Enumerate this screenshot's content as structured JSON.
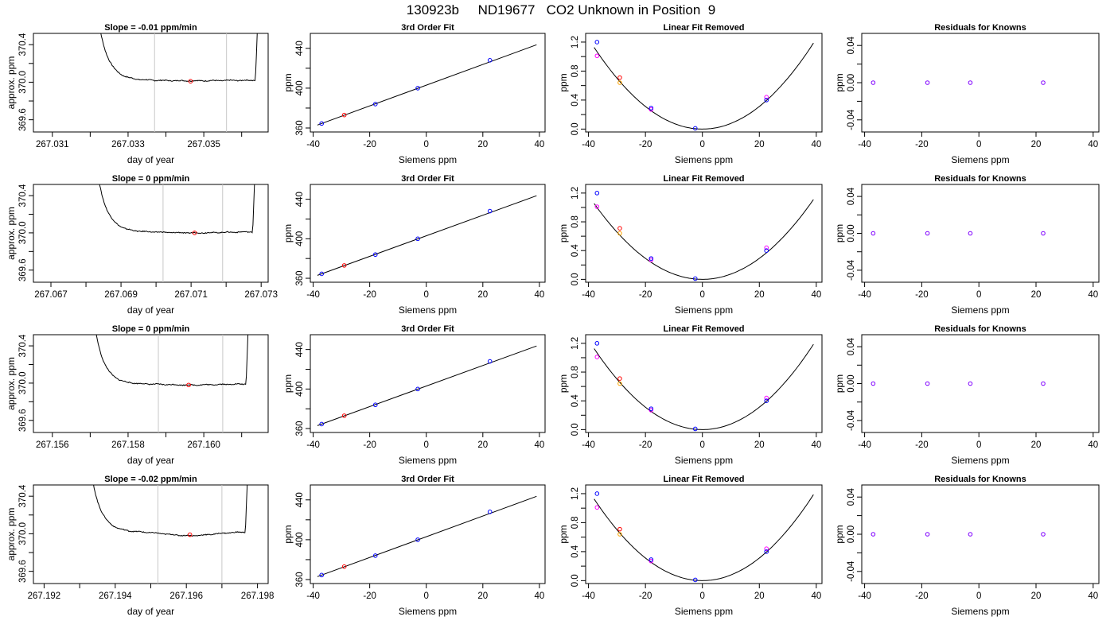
{
  "page_title": "130923b     ND19677   CO2 Unknown in Position  9",
  "colors": {
    "line": "#000000",
    "window_lines": "#c8c8c8",
    "measured_point": "#ff0000",
    "known_blue": "#0000ff",
    "known_magenta": "#ff00ff",
    "known_orange": "#ffa500",
    "residual_point": "#8000ff"
  },
  "chart_data": [
    {
      "type": "line",
      "row": 0,
      "col": 0,
      "title": "Slope =  -0.01  ppm/min",
      "xlabel": "day of year",
      "ylabel": "approx. ppm",
      "xlim": [
        267.0305,
        267.0367
      ],
      "x_ticks": [
        267.031,
        267.032,
        267.033,
        267.034,
        267.035,
        267.036
      ],
      "x_tick_labels": [
        "267.031",
        "",
        "267.033",
        "",
        "267.035",
        ""
      ],
      "ylim": [
        369.47,
        370.52
      ],
      "y_ticks": [
        369.6,
        369.8,
        370.0,
        370.2,
        370.4
      ],
      "y_tick_labels": [
        "369.6",
        "",
        "370.0",
        "",
        "370.4"
      ],
      "trace_start": 267.0321,
      "trace_end": 267.03645,
      "baseline": 370.02,
      "dip_amplitude": -0.005,
      "window": [
        267.0337,
        267.0356
      ],
      "red_point": {
        "x": 267.03465,
        "y": 370.01
      }
    },
    {
      "type": "line",
      "row": 1,
      "col": 0,
      "title": "Slope =  0  ppm/min",
      "xlabel": "day of year",
      "ylabel": "approx. ppm",
      "xlim": [
        267.0665,
        267.0732
      ],
      "x_ticks": [
        267.067,
        267.068,
        267.069,
        267.07,
        267.071,
        267.072,
        267.073
      ],
      "x_tick_labels": [
        "267.067",
        "",
        "267.069",
        "",
        "267.071",
        "",
        "267.073"
      ],
      "ylim": [
        369.47,
        370.52
      ],
      "y_ticks": [
        369.6,
        369.8,
        370.0,
        370.2,
        370.4
      ],
      "y_tick_labels": [
        "369.6",
        "",
        "370.0",
        "",
        "370.4"
      ],
      "trace_start": 267.0682,
      "trace_end": 267.07285,
      "baseline": 370.01,
      "dip_amplitude": -0.01,
      "window": [
        267.0702,
        267.0719
      ],
      "red_point": {
        "x": 267.0711,
        "y": 370.0
      }
    },
    {
      "type": "line",
      "row": 2,
      "col": 0,
      "title": "Slope =  0  ppm/min",
      "xlabel": "day of year",
      "ylabel": "approx. ppm",
      "xlim": [
        267.1555,
        267.1617
      ],
      "x_ticks": [
        267.156,
        267.157,
        267.158,
        267.159,
        267.16,
        267.161
      ],
      "x_tick_labels": [
        "267.156",
        "",
        "267.158",
        "",
        "267.160",
        ""
      ],
      "ylim": [
        369.47,
        370.52
      ],
      "y_ticks": [
        369.6,
        369.8,
        370.0,
        370.2,
        370.4
      ],
      "y_tick_labels": [
        "369.6",
        "",
        "370.0",
        "",
        "370.4"
      ],
      "trace_start": 267.157,
      "trace_end": 267.1612,
      "baseline": 369.99,
      "dip_amplitude": -0.01,
      "window": [
        267.1588,
        267.1605
      ],
      "red_point": {
        "x": 267.1596,
        "y": 369.98
      }
    },
    {
      "type": "line",
      "row": 3,
      "col": 0,
      "title": "Slope =  -0.02  ppm/min",
      "xlabel": "day of year",
      "ylabel": "approx. ppm",
      "xlim": [
        267.1917,
        267.1983
      ],
      "x_ticks": [
        267.192,
        267.193,
        267.194,
        267.195,
        267.196,
        267.197,
        267.198
      ],
      "x_tick_labels": [
        "267.192",
        "",
        "267.194",
        "",
        "267.196",
        "",
        "267.198"
      ],
      "ylim": [
        369.47,
        370.52
      ],
      "y_ticks": [
        369.6,
        369.8,
        370.0,
        370.2,
        370.4
      ],
      "y_tick_labels": [
        "369.6",
        "",
        "370.0",
        "",
        "370.4"
      ],
      "trace_start": 267.1932,
      "trace_end": 267.19775,
      "baseline": 370.02,
      "dip_amplitude": -0.04,
      "window": [
        267.1952,
        267.197
      ],
      "red_point": {
        "x": 267.1961,
        "y": 369.99
      }
    },
    {
      "type": "scatter",
      "role": "fit",
      "row": 0,
      "col": 1,
      "title": "3rd Order Fit",
      "xlabel": "Siemens ppm",
      "ylabel": "ppm",
      "xlim": [
        -41,
        42
      ],
      "ylim": [
        356,
        455
      ],
      "x_ticks": [
        -40,
        -20,
        0,
        20,
        40
      ],
      "x_tick_labels": [
        "-40",
        "-20",
        "0",
        "20",
        "40"
      ],
      "y_ticks": [
        360,
        380,
        400,
        420,
        440
      ],
      "y_tick_labels": [
        "360",
        "",
        "400",
        "",
        "440"
      ],
      "fit_line": {
        "x0": -38.5,
        "x1": 39,
        "intercept": 403,
        "slope": 1.04
      },
      "points_blue": [
        {
          "x": -37,
          "y": 364.5
        },
        {
          "x": -18,
          "y": 384
        },
        {
          "x": -3,
          "y": 400
        },
        {
          "x": 22.5,
          "y": 428
        }
      ],
      "points_red": [
        {
          "x": -29,
          "y": 373
        }
      ]
    },
    {
      "type": "scatter",
      "role": "fit",
      "row": 1,
      "col": 1,
      "title": "3rd Order Fit",
      "xlabel": "Siemens ppm",
      "ylabel": "ppm",
      "xlim": [
        -41,
        42
      ],
      "ylim": [
        356,
        455
      ],
      "x_ticks": [
        -40,
        -20,
        0,
        20,
        40
      ],
      "x_tick_labels": [
        "-40",
        "-20",
        "0",
        "20",
        "40"
      ],
      "y_ticks": [
        360,
        380,
        400,
        420,
        440
      ],
      "y_tick_labels": [
        "360",
        "",
        "400",
        "",
        "440"
      ],
      "fit_line": {
        "x0": -38.5,
        "x1": 39,
        "intercept": 403,
        "slope": 1.04
      },
      "points_blue": [
        {
          "x": -37,
          "y": 364.5
        },
        {
          "x": -18,
          "y": 384
        },
        {
          "x": -3,
          "y": 400
        },
        {
          "x": 22.5,
          "y": 428
        }
      ],
      "points_red": [
        {
          "x": -29,
          "y": 373
        }
      ]
    },
    {
      "type": "scatter",
      "role": "fit",
      "row": 2,
      "col": 1,
      "title": "3rd Order Fit",
      "xlabel": "Siemens ppm",
      "ylabel": "ppm",
      "xlim": [
        -41,
        42
      ],
      "ylim": [
        356,
        455
      ],
      "x_ticks": [
        -40,
        -20,
        0,
        20,
        40
      ],
      "x_tick_labels": [
        "-40",
        "-20",
        "0",
        "20",
        "40"
      ],
      "y_ticks": [
        360,
        380,
        400,
        420,
        440
      ],
      "y_tick_labels": [
        "360",
        "",
        "400",
        "",
        "440"
      ],
      "fit_line": {
        "x0": -38.5,
        "x1": 39,
        "intercept": 403,
        "slope": 1.04
      },
      "points_blue": [
        {
          "x": -37,
          "y": 364.5
        },
        {
          "x": -18,
          "y": 384
        },
        {
          "x": -3,
          "y": 400
        },
        {
          "x": 22.5,
          "y": 428
        }
      ],
      "points_red": [
        {
          "x": -29,
          "y": 373
        }
      ]
    },
    {
      "type": "scatter",
      "role": "fit",
      "row": 3,
      "col": 1,
      "title": "3rd Order Fit",
      "xlabel": "Siemens ppm",
      "ylabel": "ppm",
      "xlim": [
        -41,
        42
      ],
      "ylim": [
        356,
        455
      ],
      "x_ticks": [
        -40,
        -20,
        0,
        20,
        40
      ],
      "x_tick_labels": [
        "-40",
        "-20",
        "0",
        "20",
        "40"
      ],
      "y_ticks": [
        360,
        380,
        400,
        420,
        440
      ],
      "y_tick_labels": [
        "360",
        "",
        "400",
        "",
        "440"
      ],
      "fit_line": {
        "x0": -38.5,
        "x1": 39,
        "intercept": 403,
        "slope": 1.04
      },
      "points_blue": [
        {
          "x": -37,
          "y": 364.5
        },
        {
          "x": -18,
          "y": 384
        },
        {
          "x": -3,
          "y": 400
        },
        {
          "x": 22.5,
          "y": 428
        }
      ],
      "points_red": [
        {
          "x": -29,
          "y": 373
        }
      ]
    },
    {
      "type": "scatter",
      "role": "linear_removed",
      "row": 0,
      "col": 2,
      "title": "Linear Fit Removed",
      "xlabel": "Siemens ppm",
      "ylabel": "ppm",
      "xlim": [
        -41,
        42
      ],
      "ylim": [
        -0.04,
        1.32
      ],
      "x_ticks": [
        -40,
        -20,
        0,
        20,
        40
      ],
      "x_tick_labels": [
        "-40",
        "-20",
        "0",
        "20",
        "40"
      ],
      "y_ticks": [
        0.0,
        0.2,
        0.4,
        0.6,
        0.8,
        1.0,
        1.2
      ],
      "y_tick_labels": [
        "0.0",
        "",
        "0.4",
        "",
        "0.8",
        "",
        "1.2"
      ],
      "curve": {
        "x0": -38,
        "x1": 39,
        "vertex": 0,
        "k": 0.00078
      },
      "points_blue": [
        {
          "x": -37,
          "y": 1.2
        },
        {
          "x": -18,
          "y": 0.29
        },
        {
          "x": -2.5,
          "y": 0.01
        },
        {
          "x": 22.5,
          "y": 0.4
        }
      ],
      "points_magenta": [
        {
          "x": -37,
          "y": 1.01
        },
        {
          "x": -18,
          "y": 0.27
        },
        {
          "x": 22.5,
          "y": 0.44
        }
      ],
      "points_red": [
        {
          "x": -29,
          "y": 0.71
        }
      ],
      "points_orange": [
        {
          "x": -29,
          "y": 0.64
        }
      ]
    },
    {
      "type": "scatter",
      "role": "linear_removed",
      "row": 1,
      "col": 2,
      "title": "Linear Fit Removed",
      "xlabel": "Siemens ppm",
      "ylabel": "ppm",
      "xlim": [
        -41,
        42
      ],
      "ylim": [
        -0.04,
        1.32
      ],
      "x_ticks": [
        -40,
        -20,
        0,
        20,
        40
      ],
      "x_tick_labels": [
        "-40",
        "-20",
        "0",
        "20",
        "40"
      ],
      "y_ticks": [
        0.0,
        0.2,
        0.4,
        0.6,
        0.8,
        1.0,
        1.2
      ],
      "y_tick_labels": [
        "0.0",
        "",
        "0.4",
        "",
        "0.8",
        "",
        "1.2"
      ],
      "curve": {
        "x0": -38,
        "x1": 39,
        "vertex": 0,
        "k": 0.00073
      },
      "points_blue": [
        {
          "x": -37,
          "y": 1.2
        },
        {
          "x": -18,
          "y": 0.29
        },
        {
          "x": -2.5,
          "y": 0.01
        },
        {
          "x": 22.5,
          "y": 0.4
        }
      ],
      "points_magenta": [
        {
          "x": -37,
          "y": 1.01
        },
        {
          "x": -18,
          "y": 0.27
        },
        {
          "x": 22.5,
          "y": 0.44
        }
      ],
      "points_red": [
        {
          "x": -29,
          "y": 0.71
        }
      ],
      "points_orange": [
        {
          "x": -29,
          "y": 0.64
        }
      ]
    },
    {
      "type": "scatter",
      "role": "linear_removed",
      "row": 2,
      "col": 2,
      "title": "Linear Fit Removed",
      "xlabel": "Siemens ppm",
      "ylabel": "ppm",
      "xlim": [
        -41,
        42
      ],
      "ylim": [
        -0.04,
        1.32
      ],
      "x_ticks": [
        -40,
        -20,
        0,
        20,
        40
      ],
      "x_tick_labels": [
        "-40",
        "-20",
        "0",
        "20",
        "40"
      ],
      "y_ticks": [
        0.0,
        0.2,
        0.4,
        0.6,
        0.8,
        1.0,
        1.2
      ],
      "y_tick_labels": [
        "0.0",
        "",
        "0.4",
        "",
        "0.8",
        "",
        "1.2"
      ],
      "curve": {
        "x0": -38,
        "x1": 39,
        "vertex": 0,
        "k": 0.00078
      },
      "points_blue": [
        {
          "x": -37,
          "y": 1.2
        },
        {
          "x": -18,
          "y": 0.29
        },
        {
          "x": -2.5,
          "y": 0.01
        },
        {
          "x": 22.5,
          "y": 0.4
        }
      ],
      "points_magenta": [
        {
          "x": -37,
          "y": 1.01
        },
        {
          "x": -18,
          "y": 0.27
        },
        {
          "x": 22.5,
          "y": 0.44
        }
      ],
      "points_red": [
        {
          "x": -29,
          "y": 0.71
        }
      ],
      "points_orange": [
        {
          "x": -29,
          "y": 0.64
        }
      ]
    },
    {
      "type": "scatter",
      "role": "linear_removed",
      "row": 3,
      "col": 2,
      "title": "Linear Fit Removed",
      "xlabel": "Siemens ppm",
      "ylabel": "ppm",
      "xlim": [
        -41,
        42
      ],
      "ylim": [
        -0.04,
        1.32
      ],
      "x_ticks": [
        -40,
        -20,
        0,
        20,
        40
      ],
      "x_tick_labels": [
        "-40",
        "-20",
        "0",
        "20",
        "40"
      ],
      "y_ticks": [
        0.0,
        0.2,
        0.4,
        0.6,
        0.8,
        1.0,
        1.2
      ],
      "y_tick_labels": [
        "0.0",
        "",
        "0.4",
        "",
        "0.8",
        "",
        "1.2"
      ],
      "curve": {
        "x0": -38,
        "x1": 39,
        "vertex": 0,
        "k": 0.00078
      },
      "points_blue": [
        {
          "x": -37,
          "y": 1.2
        },
        {
          "x": -18,
          "y": 0.29
        },
        {
          "x": -2.5,
          "y": 0.01
        },
        {
          "x": 22.5,
          "y": 0.4
        }
      ],
      "points_magenta": [
        {
          "x": -37,
          "y": 1.01
        },
        {
          "x": -18,
          "y": 0.27
        },
        {
          "x": 22.5,
          "y": 0.44
        }
      ],
      "points_red": [
        {
          "x": -29,
          "y": 0.71
        }
      ],
      "points_orange": [
        {
          "x": -29,
          "y": 0.64
        }
      ]
    },
    {
      "type": "scatter",
      "role": "residuals",
      "row": 0,
      "col": 3,
      "title": "Residuals for Knowns",
      "xlabel": "Siemens ppm",
      "ylabel": "ppm",
      "xlim": [
        -41,
        42
      ],
      "ylim": [
        -0.053,
        0.053
      ],
      "x_ticks": [
        -40,
        -20,
        0,
        20,
        40
      ],
      "x_tick_labels": [
        "-40",
        "-20",
        "0",
        "20",
        "40"
      ],
      "y_ticks": [
        -0.04,
        -0.02,
        0.0,
        0.02,
        0.04
      ],
      "y_tick_labels": [
        "-0.04",
        "",
        "0.00",
        "",
        "0.04"
      ],
      "points_residual": [
        {
          "x": -37,
          "y": 0
        },
        {
          "x": -18,
          "y": 0
        },
        {
          "x": -3,
          "y": 0
        },
        {
          "x": 22.5,
          "y": 0
        }
      ]
    },
    {
      "type": "scatter",
      "role": "residuals",
      "row": 1,
      "col": 3,
      "title": "Residuals for Knowns",
      "xlabel": "Siemens ppm",
      "ylabel": "ppm",
      "xlim": [
        -41,
        42
      ],
      "ylim": [
        -0.053,
        0.053
      ],
      "x_ticks": [
        -40,
        -20,
        0,
        20,
        40
      ],
      "x_tick_labels": [
        "-40",
        "-20",
        "0",
        "20",
        "40"
      ],
      "y_ticks": [
        -0.04,
        -0.02,
        0.0,
        0.02,
        0.04
      ],
      "y_tick_labels": [
        "-0.04",
        "",
        "0.00",
        "",
        "0.04"
      ],
      "points_residual": [
        {
          "x": -37,
          "y": 0
        },
        {
          "x": -18,
          "y": 0
        },
        {
          "x": -3,
          "y": 0
        },
        {
          "x": 22.5,
          "y": 0
        }
      ]
    },
    {
      "type": "scatter",
      "role": "residuals",
      "row": 2,
      "col": 3,
      "title": "Residuals for Knowns",
      "xlabel": "Siemens ppm",
      "ylabel": "ppm",
      "xlim": [
        -41,
        42
      ],
      "ylim": [
        -0.053,
        0.053
      ],
      "x_ticks": [
        -40,
        -20,
        0,
        20,
        40
      ],
      "x_tick_labels": [
        "-40",
        "-20",
        "0",
        "20",
        "40"
      ],
      "y_ticks": [
        -0.04,
        -0.02,
        0.0,
        0.02,
        0.04
      ],
      "y_tick_labels": [
        "-0.04",
        "",
        "0.00",
        "",
        "0.04"
      ],
      "points_residual": [
        {
          "x": -37,
          "y": 0
        },
        {
          "x": -18,
          "y": 0
        },
        {
          "x": -3,
          "y": 0
        },
        {
          "x": 22.5,
          "y": 0
        }
      ]
    },
    {
      "type": "scatter",
      "role": "residuals",
      "row": 3,
      "col": 3,
      "title": "Residuals for Knowns",
      "xlabel": "Siemens ppm",
      "ylabel": "ppm",
      "xlim": [
        -41,
        42
      ],
      "ylim": [
        -0.053,
        0.053
      ],
      "x_ticks": [
        -40,
        -20,
        0,
        20,
        40
      ],
      "x_tick_labels": [
        "-40",
        "-20",
        "0",
        "20",
        "40"
      ],
      "y_ticks": [
        -0.04,
        -0.02,
        0.0,
        0.02,
        0.04
      ],
      "y_tick_labels": [
        "-0.04",
        "",
        "0.00",
        "",
        "0.04"
      ],
      "points_residual": [
        {
          "x": -37,
          "y": 0
        },
        {
          "x": -18,
          "y": 0
        },
        {
          "x": -3,
          "y": 0
        },
        {
          "x": 22.5,
          "y": 0
        }
      ]
    }
  ]
}
